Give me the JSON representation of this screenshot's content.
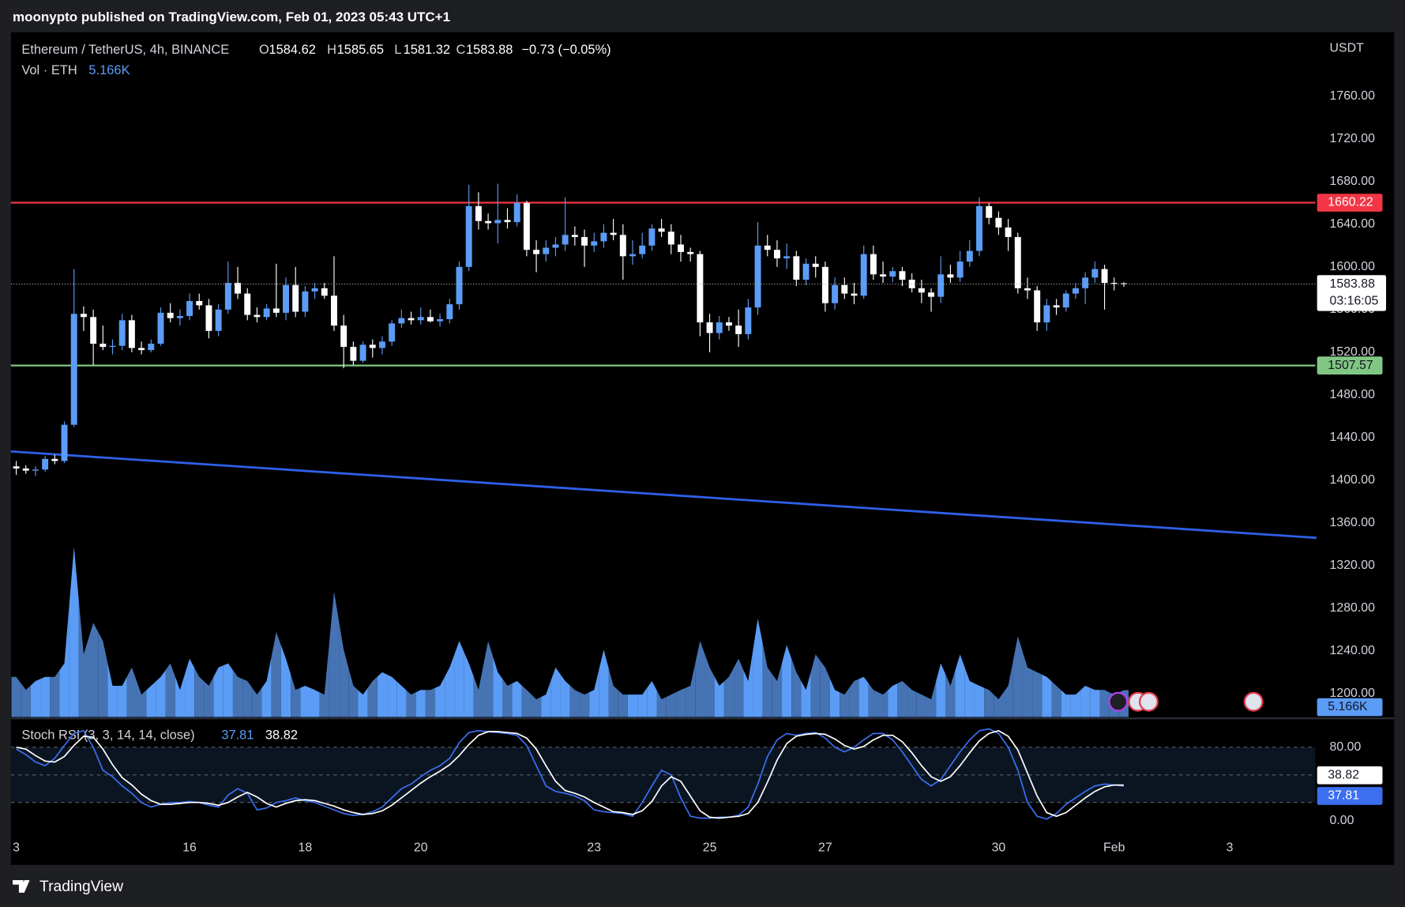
{
  "chart_data": {
    "type": "candlestick",
    "header": "moonypto published on TradingView.com, Feb 01, 2023 05:43 UTC+1",
    "title": "Ethereum / TetherUS, 4h, BINANCE",
    "legend_prefixes": [
      "O",
      "H",
      "L",
      "C"
    ],
    "change": "−0.73 (−0.05%)",
    "currency": "USDT",
    "countdown": "03:16:05",
    "footer": "TradingView",
    "up_color": "#5b9cf6",
    "down_color": "#ffffff",
    "categories": [
      "3",
      null,
      null,
      null,
      null,
      null,
      null,
      null,
      null,
      null,
      null,
      null,
      null,
      null,
      null,
      null,
      null,
      null,
      "16",
      null,
      null,
      null,
      null,
      null,
      null,
      null,
      null,
      null,
      null,
      null,
      "18",
      null,
      null,
      null,
      null,
      null,
      null,
      null,
      null,
      null,
      null,
      null,
      "20",
      null,
      null,
      null,
      null,
      null,
      null,
      null,
      null,
      null,
      null,
      null,
      null,
      null,
      null,
      null,
      null,
      null,
      "23",
      null,
      null,
      null,
      null,
      null,
      null,
      null,
      null,
      null,
      null,
      null,
      "25",
      null,
      null,
      null,
      null,
      null,
      null,
      null,
      null,
      null,
      null,
      null,
      "27",
      null,
      null,
      null,
      null,
      null,
      null,
      null,
      null,
      null,
      null,
      null,
      null,
      null,
      null,
      null,
      null,
      null,
      "30",
      null,
      null,
      null,
      null,
      null,
      null,
      null,
      null,
      null,
      null,
      null,
      "Feb",
      null,
      null,
      null,
      null,
      null,
      null,
      null,
      null,
      null,
      null,
      null,
      "3",
      null,
      null,
      null,
      null,
      null,
      null,
      null,
      null,
      null
    ],
    "open": [
      1413,
      1411,
      1409,
      1410,
      1420,
      1418,
      1452,
      1556,
      1553,
      1528,
      1525,
      1526,
      1550,
      1524,
      1522,
      1528,
      1557,
      1552,
      1554,
      1568,
      1564,
      1540,
      1560,
      1585,
      1575,
      1555,
      1553,
      1561,
      1557,
      1583,
      1558,
      1577,
      1580,
      1573,
      1545,
      1525,
      1512,
      1527,
      1524,
      1530,
      1547,
      1552,
      1550,
      1553,
      1549,
      1551,
      1565,
      1600,
      1657,
      1643,
      1641,
      1644,
      1642,
      1660,
      1616,
      1612,
      1618,
      1621,
      1630,
      1628,
      1620,
      1624,
      1632,
      1630,
      1610,
      1612,
      1620,
      1636,
      1633,
      1621,
      1614,
      1612,
      1548,
      1538,
      1548,
      1545,
      1537,
      1562,
      1620,
      1616,
      1608,
      1610,
      1588,
      1603,
      1600,
      1566,
      1583,
      1575,
      1573,
      1612,
      1593,
      1591,
      1596,
      1588,
      1580,
      1576,
      1572,
      1593,
      1590,
      1605,
      1615,
      1657,
      1646,
      1637,
      1628,
      1580,
      1578,
      1548,
      1564,
      1562,
      1575,
      1580,
      1590,
      1598,
      1585,
      1584.62,
      null,
      null,
      null,
      null,
      null,
      null,
      null,
      null,
      null,
      null,
      null,
      null,
      null,
      null,
      null,
      null,
      null,
      null,
      null,
      null
    ],
    "high": [
      1418,
      1414,
      1413,
      1423,
      1424,
      1455,
      1598,
      1563,
      1560,
      1545,
      1532,
      1556,
      1555,
      1530,
      1532,
      1562,
      1566,
      1560,
      1575,
      1575,
      1570,
      1565,
      1605,
      1600,
      1580,
      1562,
      1565,
      1603,
      1590,
      1600,
      1582,
      1585,
      1585,
      1610,
      1555,
      1530,
      1530,
      1532,
      1535,
      1550,
      1560,
      1558,
      1562,
      1560,
      1556,
      1570,
      1605,
      1677,
      1670,
      1650,
      1678,
      1655,
      1668,
      1662,
      1625,
      1625,
      1628,
      1665,
      1638,
      1635,
      1632,
      1640,
      1645,
      1640,
      1625,
      1632,
      1640,
      1645,
      1640,
      1630,
      1618,
      1615,
      1556,
      1554,
      1553,
      1560,
      1570,
      1642,
      1630,
      1625,
      1622,
      1615,
      1608,
      1610,
      1605,
      1590,
      1590,
      1585,
      1620,
      1620,
      1605,
      1600,
      1600,
      1594,
      1588,
      1580,
      1610,
      1602,
      1615,
      1625,
      1665,
      1660,
      1652,
      1645,
      1632,
      1590,
      1582,
      1570,
      1570,
      1578,
      1585,
      1595,
      1605,
      1602,
      1590,
      1585.65,
      null,
      null,
      null,
      null,
      null,
      null,
      null,
      null,
      null,
      null,
      null,
      null,
      null,
      null,
      null,
      null,
      null,
      null,
      null,
      null
    ],
    "low": [
      1405,
      1406,
      1404,
      1408,
      1415,
      1416,
      1450,
      1540,
      1508,
      1522,
      1518,
      1522,
      1520,
      1518,
      1520,
      1526,
      1548,
      1545,
      1550,
      1560,
      1533,
      1535,
      1556,
      1570,
      1550,
      1548,
      1550,
      1553,
      1550,
      1553,
      1553,
      1570,
      1570,
      1540,
      1505,
      1508,
      1510,
      1515,
      1518,
      1526,
      1543,
      1546,
      1546,
      1548,
      1544,
      1547,
      1560,
      1596,
      1635,
      1635,
      1622,
      1636,
      1638,
      1610,
      1595,
      1605,
      1610,
      1615,
      1620,
      1600,
      1614,
      1618,
      1625,
      1588,
      1602,
      1608,
      1615,
      1628,
      1612,
      1605,
      1605,
      1535,
      1520,
      1532,
      1540,
      1525,
      1532,
      1555,
      1610,
      1600,
      1598,
      1582,
      1583,
      1590,
      1558,
      1560,
      1570,
      1565,
      1570,
      1588,
      1585,
      1586,
      1582,
      1576,
      1566,
      1558,
      1566,
      1585,
      1586,
      1600,
      1610,
      1640,
      1630,
      1615,
      1575,
      1570,
      1540,
      1540,
      1555,
      1558,
      1570,
      1565,
      1585,
      1560,
      1578,
      1581.32,
      null,
      null,
      null,
      null,
      null,
      null,
      null,
      null,
      null,
      null,
      null,
      null,
      null,
      null,
      null,
      null,
      null,
      null,
      null,
      null
    ],
    "close": [
      1411,
      1409,
      1410,
      1420,
      1418,
      1452,
      1556,
      1553,
      1528,
      1525,
      1526,
      1550,
      1524,
      1522,
      1528,
      1557,
      1552,
      1554,
      1568,
      1564,
      1540,
      1560,
      1585,
      1575,
      1555,
      1553,
      1561,
      1557,
      1583,
      1558,
      1577,
      1580,
      1573,
      1545,
      1525,
      1512,
      1527,
      1524,
      1530,
      1547,
      1552,
      1550,
      1553,
      1549,
      1551,
      1565,
      1600,
      1657,
      1643,
      1641,
      1644,
      1642,
      1660,
      1616,
      1612,
      1618,
      1621,
      1630,
      1628,
      1620,
      1624,
      1632,
      1630,
      1610,
      1612,
      1620,
      1636,
      1633,
      1621,
      1614,
      1612,
      1548,
      1538,
      1548,
      1545,
      1537,
      1562,
      1620,
      1616,
      1608,
      1610,
      1588,
      1603,
      1600,
      1566,
      1583,
      1575,
      1573,
      1612,
      1593,
      1591,
      1596,
      1588,
      1580,
      1576,
      1572,
      1593,
      1590,
      1605,
      1615,
      1657,
      1646,
      1637,
      1628,
      1580,
      1578,
      1548,
      1564,
      1562,
      1575,
      1580,
      1590,
      1598,
      1585,
      1584.62,
      1583.88,
      null,
      null,
      null,
      null,
      null,
      null,
      null,
      null,
      null,
      null,
      null,
      null,
      null,
      null,
      null,
      null,
      null,
      null,
      null,
      null
    ],
    "ylim": [
      1178,
      1820
    ],
    "yticks": [
      {
        "value": 1200,
        "label": "1200.00"
      },
      {
        "value": 1240,
        "label": "1240.00"
      },
      {
        "value": 1280,
        "label": "1280.00"
      },
      {
        "value": 1320,
        "label": "1320.00"
      },
      {
        "value": 1360,
        "label": "1360.00"
      },
      {
        "value": 1400,
        "label": "1400.00"
      },
      {
        "value": 1440,
        "label": "1440.00"
      },
      {
        "value": 1480,
        "label": "1480.00"
      },
      {
        "value": 1520,
        "label": "1520.00"
      },
      {
        "value": 1560,
        "label": "1560.00"
      },
      {
        "value": 1600,
        "label": "1600.00"
      },
      {
        "value": 1640,
        "label": "1640.00"
      },
      {
        "value": 1680,
        "label": "1680.00"
      },
      {
        "value": 1720,
        "label": "1720.00"
      },
      {
        "value": 1760,
        "label": "1760.00"
      }
    ],
    "grid": false,
    "price_lines": [
      {
        "value": 1660.22,
        "color": "#f23645",
        "text_color": "#ffffff"
      },
      {
        "value": 1507.57,
        "color": "#81c784",
        "text_color": "#131722"
      }
    ],
    "trendline": {
      "values": [
        1427,
        1346
      ],
      "color": "#2f5fe6"
    },
    "volume": {
      "name": "Vol · ETH",
      "up_color": "#5b9cf6",
      "down_color": "#4673b3",
      "last_label": "5.166K",
      "values": [
        7.7,
        5.2,
        6.9,
        7.7,
        7.7,
        10.3,
        32.7,
        12,
        18.1,
        14.6,
        6,
        6,
        9.5,
        4.3,
        6,
        7.7,
        10.3,
        5.2,
        11.2,
        7.7,
        6,
        9.5,
        10.3,
        7.7,
        6.9,
        4.3,
        6.9,
        16.3,
        11.2,
        5.2,
        6,
        5.2,
        4.3,
        24.1,
        12.9,
        6,
        4.3,
        6.9,
        8.6,
        7.7,
        6,
        4.3,
        5.2,
        5.2,
        6,
        9.5,
        14.6,
        10.3,
        5.2,
        14.6,
        8.6,
        6,
        6.9,
        5.2,
        3.4,
        4.3,
        9.5,
        6.9,
        5.2,
        4.3,
        5.2,
        12.9,
        6,
        4.3,
        4.3,
        4.3,
        6.9,
        3.4,
        4.3,
        5.2,
        6,
        14.6,
        9.5,
        6,
        7.7,
        11.2,
        6.9,
        18.9,
        9.5,
        6.9,
        13.8,
        8.6,
        5.2,
        12,
        9.5,
        5.2,
        4.3,
        6.9,
        7.7,
        5.2,
        4.3,
        6,
        6.9,
        5.2,
        4.3,
        3.4,
        10.3,
        6,
        12,
        6.9,
        6,
        5.2,
        3.4,
        6,
        15.5,
        9.5,
        8.6,
        7.7,
        6,
        4.3,
        4.3,
        6,
        5.2,
        5.2,
        4.3,
        5.166,
        null,
        null,
        null,
        null,
        null,
        null,
        null,
        null,
        null,
        null,
        null,
        null,
        null,
        null,
        null,
        null,
        null,
        null,
        null,
        null
      ]
    },
    "stoch": {
      "title": "Stoch RSI (3, 3, 14, 14, close)",
      "ylim": [
        -41,
        109
      ],
      "yticks": [
        {
          "value": 80,
          "label": "80.00"
        },
        {
          "value": 0,
          "label": "0.00"
        }
      ],
      "bands": [
        20,
        50,
        80
      ],
      "k": {
        "color": "#3b6ff0",
        "values": [
          78,
          72,
          64,
          60,
          68,
          82,
          95,
          98,
          80,
          55,
          48,
          38,
          30,
          20,
          15,
          18,
          20,
          20,
          21,
          20,
          17,
          15,
          28,
          35,
          30,
          12,
          14,
          20,
          22,
          25,
          22,
          20,
          16,
          12,
          8,
          6,
          7,
          10,
          15,
          25,
          35,
          40,
          48,
          55,
          60,
          68,
          85,
          96,
          98,
          97,
          96,
          95,
          93,
          82,
          60,
          38,
          32,
          30,
          27,
          22,
          12,
          10,
          9,
          8,
          5,
          20,
          38,
          55,
          50,
          25,
          5,
          3,
          3,
          4,
          4,
          6,
          15,
          40,
          70,
          88,
          95,
          93,
          95,
          96,
          90,
          80,
          75,
          80,
          88,
          95,
          95,
          88,
          75,
          60,
          45,
          38,
          45,
          60,
          75,
          88,
          98,
          100,
          95,
          80,
          55,
          20,
          5,
          2,
          8,
          18,
          25,
          32,
          38,
          40,
          39,
          37.81,
          null,
          null,
          null,
          null,
          null,
          null,
          null,
          null,
          null,
          null,
          null,
          null,
          null,
          null,
          null,
          null,
          null,
          null,
          null,
          null
        ]
      },
      "d": {
        "color": "#ffffff",
        "values": [
          80,
          78,
          71,
          65,
          64,
          70,
          82,
          92,
          91,
          78,
          61,
          47,
          39,
          29,
          22,
          18,
          18,
          19,
          20,
          20,
          19,
          17,
          20,
          26,
          31,
          26,
          19,
          15,
          19,
          22,
          23,
          22,
          19,
          16,
          12,
          9,
          7,
          8,
          11,
          17,
          25,
          33,
          41,
          48,
          54,
          61,
          71,
          83,
          93,
          97,
          97,
          96,
          95,
          90,
          78,
          60,
          43,
          33,
          30,
          26,
          20,
          15,
          10,
          9,
          7,
          11,
          21,
          38,
          48,
          43,
          27,
          11,
          4,
          3,
          4,
          5,
          8,
          20,
          42,
          66,
          84,
          92,
          94,
          95,
          94,
          89,
          82,
          78,
          81,
          88,
          93,
          93,
          86,
          74,
          60,
          48,
          43,
          48,
          60,
          74,
          87,
          95,
          98,
          92,
          77,
          52,
          27,
          9,
          5,
          9,
          17,
          25,
          32,
          37,
          39,
          38.82,
          null,
          null,
          null,
          null,
          null,
          null,
          null,
          null,
          null,
          null,
          null,
          null,
          null,
          null,
          null,
          null,
          null,
          null,
          null,
          null
        ]
      }
    }
  }
}
